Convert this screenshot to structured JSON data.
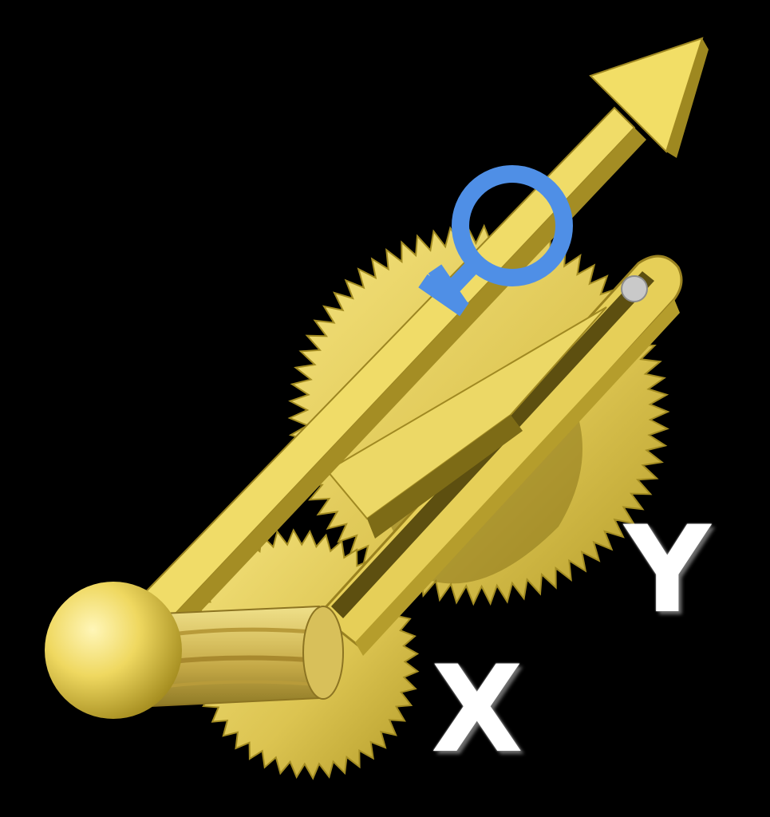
{
  "labels": {
    "x": "X",
    "y": "Y"
  },
  "symbol": {
    "name": "venus-female-symbol",
    "color": "#4f8fe6"
  },
  "colors": {
    "background": "#000000",
    "gold": "#e8d35a",
    "gold_light": "#f6e58c",
    "gold_dark": "#a8931f",
    "gold_shadow": "#6f5f12",
    "label": "#ffffff"
  },
  "icons": {
    "arrow": "arrow-icon",
    "gear_large": "gear-icon",
    "gear_small": "gear-icon",
    "knob": "sphere-icon",
    "symbol": "venus-icon"
  }
}
